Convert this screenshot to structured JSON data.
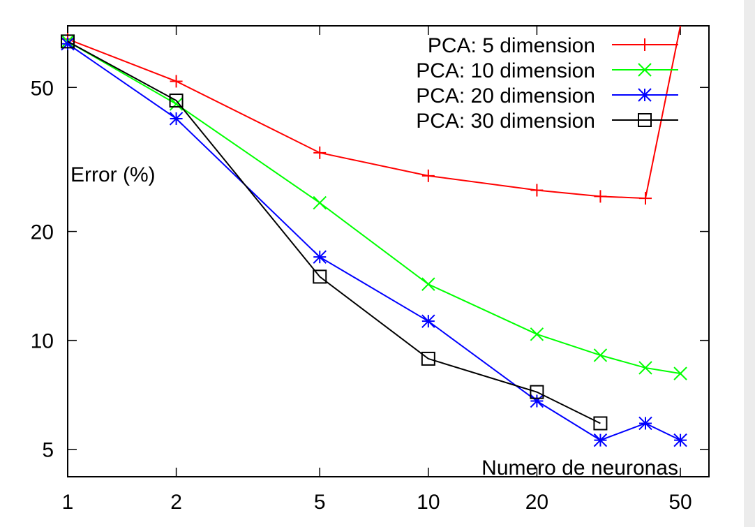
{
  "chart_data": {
    "type": "line",
    "title": "",
    "xlabel": "Numero de neuronas",
    "ylabel": "Error (%)",
    "xscale": "log",
    "yscale": "log",
    "xlim": [
      1,
      60
    ],
    "ylim": [
      4.2,
      74
    ],
    "xticks": [
      1,
      2,
      5,
      10,
      20,
      50
    ],
    "yticks": [
      5,
      10,
      20,
      50
    ],
    "grid": false,
    "legend_position": "top-right",
    "series": [
      {
        "name": "PCA: 5 dimension",
        "color": "#ff0000",
        "marker": "plus",
        "x": [
          1,
          2,
          5,
          10,
          20,
          30,
          40,
          50
        ],
        "y": [
          68,
          52,
          33,
          28.5,
          26,
          25,
          24.7,
          80
        ]
      },
      {
        "name": "PCA: 10 dimension",
        "color": "#00ff00",
        "marker": "cross",
        "x": [
          1,
          2,
          5,
          10,
          20,
          30,
          40,
          50
        ],
        "y": [
          67,
          45,
          24,
          14.3,
          10.4,
          9.1,
          8.4,
          8.1
        ]
      },
      {
        "name": "PCA: 20 dimension",
        "color": "#0000ff",
        "marker": "star",
        "x": [
          1,
          2,
          5,
          10,
          20,
          30,
          40,
          50
        ],
        "y": [
          66,
          41,
          17,
          11.3,
          6.8,
          5.3,
          5.9,
          5.3
        ]
      },
      {
        "name": "PCA: 30 dimension",
        "color": "#000000",
        "marker": "square",
        "x": [
          1,
          2,
          5,
          10,
          20,
          30
        ],
        "y": [
          67,
          46,
          15,
          8.9,
          7.2,
          5.9
        ]
      }
    ]
  }
}
